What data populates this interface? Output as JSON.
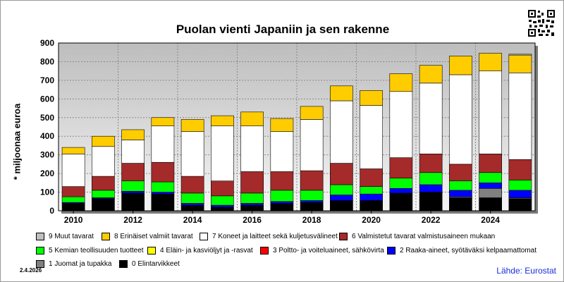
{
  "chart_data": {
    "type": "bar",
    "stacked": true,
    "title": "Puolan vienti Japaniin ja sen rakenne",
    "ylabel": "* miljoonaa euroa",
    "xlabel": "",
    "ylim": [
      0,
      900
    ],
    "yticks": [
      0,
      100,
      200,
      300,
      400,
      500,
      600,
      700,
      800,
      900
    ],
    "xtick_labels": [
      "2010",
      "2012",
      "2014",
      "2016",
      "2018",
      "2020",
      "2022",
      "2024"
    ],
    "categories": [
      "2010",
      "2011",
      "2012",
      "2013",
      "2014",
      "2015",
      "2016",
      "2017",
      "2018",
      "2019",
      "2020",
      "2021",
      "2022",
      "2023",
      "2024",
      "2025"
    ],
    "grid": true,
    "series": [
      {
        "name": "0 Elintarvikkeet",
        "color": "#000000",
        "values": [
          40,
          65,
          95,
          90,
          30,
          20,
          30,
          40,
          45,
          55,
          55,
          95,
          100,
          70,
          70,
          65
        ]
      },
      {
        "name": "1 Juomat ja tupakka",
        "color": "#808080",
        "values": [
          0,
          0,
          0,
          0,
          0,
          0,
          0,
          0,
          0,
          0,
          0,
          0,
          0,
          5,
          50,
          5
        ]
      },
      {
        "name": "2 Raaka-aineet, syötäväksi kelpaamattomat",
        "color": "#0000ff",
        "values": [
          5,
          5,
          10,
          10,
          10,
          10,
          10,
          10,
          10,
          30,
          35,
          25,
          40,
          35,
          30,
          40
        ]
      },
      {
        "name": "3 Poltto- ja voiteluaineet, sähkövirta",
        "color": "#ff0000",
        "values": [
          0,
          0,
          0,
          0,
          0,
          0,
          0,
          0,
          0,
          0,
          0,
          0,
          0,
          0,
          0,
          0
        ]
      },
      {
        "name": "4 Eläin- ja kasviöljyt ja -rasvat",
        "color": "#ffff00",
        "values": [
          0,
          0,
          0,
          0,
          0,
          0,
          0,
          0,
          0,
          0,
          0,
          0,
          0,
          0,
          0,
          0
        ]
      },
      {
        "name": "5 Kemian teollisuuden tuotteet",
        "color": "#00ff00",
        "values": [
          30,
          40,
          55,
          55,
          55,
          50,
          55,
          60,
          55,
          55,
          40,
          55,
          65,
          50,
          55,
          55
        ]
      },
      {
        "name": "6 Valmistetut tavarat valmistusaineen mukaan",
        "color": "#a52a2a",
        "values": [
          55,
          75,
          95,
          105,
          90,
          80,
          115,
          100,
          105,
          115,
          95,
          110,
          100,
          90,
          100,
          110
        ]
      },
      {
        "name": "7 Koneet ja laitteet sekä kuljetusvälineet",
        "color": "#ffffff",
        "values": [
          175,
          160,
          125,
          195,
          240,
          295,
          245,
          215,
          275,
          335,
          340,
          355,
          380,
          480,
          445,
          465
        ]
      },
      {
        "name": "8 Erinäiset valmiit tavarat",
        "color": "#ffcc00",
        "values": [
          35,
          55,
          55,
          45,
          65,
          55,
          75,
          70,
          70,
          80,
          80,
          95,
          95,
          100,
          95,
          95
        ]
      },
      {
        "name": "9 Muut tavarat",
        "color": "#c0c0c0",
        "values": [
          0,
          0,
          0,
          0,
          0,
          0,
          0,
          0,
          0,
          0,
          0,
          0,
          0,
          0,
          0,
          5
        ]
      }
    ]
  },
  "legend_items": [
    {
      "label": "9 Muut tavarat",
      "color": "#c0c0c0"
    },
    {
      "label": "8 Erinäiset valmiit tavarat",
      "color": "#ffcc00"
    },
    {
      "label": "7 Koneet ja laitteet sekä kuljetusvälineet",
      "color": "#ffffff"
    },
    {
      "label": "6 Valmistetut tavarat valmistusaineen mukaan",
      "color": "#a52a2a"
    },
    {
      "label": "5 Kemian teollisuuden tuotteet",
      "color": "#00ff00"
    },
    {
      "label": "4 Eläin- ja kasviöljyt ja -rasvat",
      "color": "#ffff00"
    },
    {
      "label": "3 Poltto- ja voiteluaineet, sähkövirta",
      "color": "#ff0000"
    },
    {
      "label": "2 Raaka-aineet, syötäväksi kelpaamattomat",
      "color": "#0000ff"
    },
    {
      "label": "1 Juomat ja tupakka",
      "color": "#808080"
    },
    {
      "label": "0 Elintarvikkeet",
      "color": "#000000"
    }
  ],
  "footer": {
    "date": "2.4.2026",
    "source": "Lähde: Eurostat"
  },
  "icons": {
    "qr": "qr-code-icon"
  }
}
